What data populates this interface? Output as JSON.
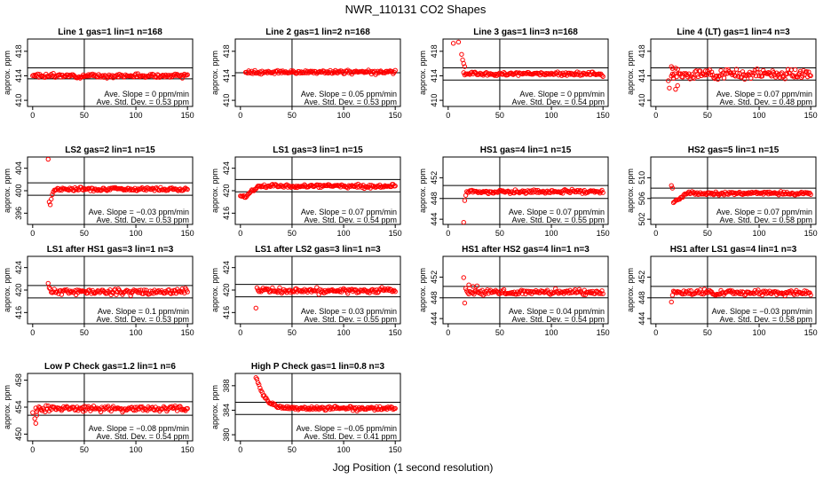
{
  "page": {
    "title": "NWR_110131   CO2 Shapes",
    "xlabel": "Jog Position (1 second resolution)"
  },
  "chart_data": [
    {
      "type": "scatter",
      "title": "Line 1 gas=1 lin=1 n=168",
      "xlabel": "",
      "ylabel": "approx. ppm",
      "xlim": [
        -5,
        155
      ],
      "ylim": [
        409,
        420
      ],
      "xticks": [
        0,
        50,
        100,
        150
      ],
      "yticks": [
        410,
        414,
        418
      ],
      "hlines": [
        413.5,
        415.3
      ],
      "vline": 50,
      "point_color": "#ff0000",
      "shape": {
        "mode": "flat",
        "base": 414.0,
        "noise": 0.15,
        "start": 0
      },
      "annotation": [
        "Ave. Slope = 0  ppm/min",
        "Ave. Std. Dev. = 0.53  ppm"
      ]
    },
    {
      "type": "scatter",
      "title": "Line 2 gas=1 lin=2 n=168",
      "xlabel": "",
      "ylabel": "approx. ppm",
      "xlim": [
        -5,
        155
      ],
      "ylim": [
        409,
        420
      ],
      "xticks": [
        0,
        50,
        100,
        150
      ],
      "yticks": [
        410,
        414,
        418
      ],
      "hlines": [
        414.5
      ],
      "vline": 50,
      "point_color": "#ff0000",
      "shape": {
        "mode": "flat",
        "base": 414.6,
        "noise": 0.15,
        "start": 5
      },
      "annotation": [
        "Ave. Slope = 0.05  ppm/min",
        "Ave. Std. Dev. = 0.53  ppm"
      ]
    },
    {
      "type": "scatter",
      "title": "Line 3 gas=1 lin=3 n=168",
      "xlabel": "",
      "ylabel": "approx. ppm",
      "xlim": [
        -5,
        155
      ],
      "ylim": [
        409,
        420
      ],
      "xticks": [
        0,
        50,
        100,
        150
      ],
      "yticks": [
        410,
        414,
        418
      ],
      "hlines": [
        413.3,
        415.3
      ],
      "vline": 50,
      "point_color": "#ff0000",
      "shape": {
        "mode": "flat",
        "base": 414.3,
        "noise": 0.15,
        "start": 15
      },
      "outliers": [
        [
          5,
          419.3
        ],
        [
          10,
          419.5
        ],
        [
          13,
          417.5
        ],
        [
          14,
          416.6
        ],
        [
          15,
          416
        ],
        [
          16,
          415.5
        ]
      ],
      "annotation": [
        "Ave. Slope = 0  ppm/min",
        "Ave. Std. Dev. = 0.54  ppm"
      ]
    },
    {
      "type": "scatter",
      "title": "Line 4 (LT) gas=1 lin=4 n=3",
      "xlabel": "",
      "ylabel": "approx. ppm",
      "xlim": [
        -5,
        155
      ],
      "ylim": [
        409,
        420
      ],
      "xticks": [
        0,
        50,
        100,
        150
      ],
      "yticks": [
        410,
        414,
        418
      ],
      "hlines": [
        413.3,
        415.3
      ],
      "vline": 50,
      "point_color": "#ff0000",
      "shape": {
        "mode": "flat",
        "base": 414.3,
        "noise": 0.4,
        "start": 15
      },
      "outliers": [
        [
          12,
          413.2
        ],
        [
          13,
          412.0
        ],
        [
          15,
          415.5
        ],
        [
          16,
          415.2
        ],
        [
          17,
          413.6
        ],
        [
          19,
          411.8
        ],
        [
          21,
          412.4
        ]
      ],
      "annotation": [
        "Ave. Slope = 0.07  ppm/min",
        "Ave. Std. Dev. = 0.48  ppm"
      ]
    },
    {
      "type": "scatter",
      "title": "LS2 gas=2 lin=1 n=15",
      "xlabel": "",
      "ylabel": "approx. ppm",
      "xlim": [
        -5,
        155
      ],
      "ylim": [
        394,
        406
      ],
      "xticks": [
        0,
        50,
        100,
        150
      ],
      "yticks": [
        396,
        400,
        404
      ],
      "hlines": [
        399.2,
        401.4
      ],
      "vline": 50,
      "point_color": "#ff0000",
      "shape": {
        "mode": "flat",
        "base": 400.3,
        "noise": 0.15,
        "start": 22
      },
      "outliers": [
        [
          15,
          405.6
        ],
        [
          16,
          398.0
        ],
        [
          17,
          397.5
        ],
        [
          18,
          398.5
        ],
        [
          19,
          399.3
        ],
        [
          20,
          399.8
        ],
        [
          21,
          400.1
        ]
      ],
      "annotation": [
        "Ave. Slope = −0.03  ppm/min",
        "Ave. Std. Dev. = 0.53  ppm"
      ]
    },
    {
      "type": "scatter",
      "title": "LS1 gas=3 lin=1 n=15",
      "xlabel": "",
      "ylabel": "approx. ppm",
      "xlim": [
        -5,
        155
      ],
      "ylim": [
        414,
        426
      ],
      "xticks": [
        0,
        50,
        100,
        150
      ],
      "yticks": [
        416,
        420,
        424
      ],
      "hlines": [
        419.8,
        422
      ],
      "vline": 50,
      "point_color": "#ff0000",
      "shape": {
        "mode": "rise",
        "base": 420.8,
        "from": 419.0,
        "rise_start": 5,
        "rise_end": 18,
        "noise": 0.15,
        "start": 0
      },
      "annotation": [
        "Ave. Slope = 0.07  ppm/min",
        "Ave. Std. Dev. = 0.54  ppm"
      ]
    },
    {
      "type": "scatter",
      "title": "HS1 gas=4 lin=1 n=15",
      "xlabel": "",
      "ylabel": "approx. ppm",
      "xlim": [
        -5,
        155
      ],
      "ylim": [
        443,
        456
      ],
      "xticks": [
        0,
        50,
        100,
        150
      ],
      "yticks": [
        444,
        448,
        452
      ],
      "hlines": [
        448.0,
        450.5
      ],
      "vline": 50,
      "point_color": "#ff0000",
      "shape": {
        "mode": "flat",
        "base": 449.3,
        "noise": 0.18,
        "start": 18
      },
      "outliers": [
        [
          15,
          443.4
        ],
        [
          16,
          447.6
        ],
        [
          17,
          448.6
        ]
      ],
      "annotation": [
        "Ave. Slope = 0.07  ppm/min",
        "Ave. Std. Dev. = 0.55  ppm"
      ]
    },
    {
      "type": "scatter",
      "title": "HS2 gas=5 lin=1 n=15",
      "xlabel": "",
      "ylabel": "approx. ppm",
      "xlim": [
        -5,
        155
      ],
      "ylim": [
        501,
        514
      ],
      "xticks": [
        0,
        50,
        100,
        150
      ],
      "yticks": [
        502,
        506,
        510
      ],
      "hlines": [
        506.1,
        508.0
      ],
      "vline": 50,
      "point_color": "#ff0000",
      "shape": {
        "mode": "rise",
        "base": 507.0,
        "from": 505.4,
        "rise_start": 18,
        "rise_end": 30,
        "noise": 0.15,
        "start": 18
      },
      "outliers": [
        [
          15,
          508.5
        ],
        [
          16,
          508.0
        ],
        [
          17,
          505.2
        ]
      ],
      "annotation": [
        "Ave. Slope = 0.07  ppm/min",
        "Ave. Std. Dev. = 0.58  ppm"
      ]
    },
    {
      "type": "scatter",
      "title": "LS1 after HS1 gas=3 lin=1 n=3",
      "xlabel": "",
      "ylabel": "approx. ppm",
      "xlim": [
        -5,
        155
      ],
      "ylim": [
        414,
        426
      ],
      "xticks": [
        0,
        50,
        100,
        150
      ],
      "yticks": [
        416,
        420,
        424
      ],
      "hlines": [
        418.6,
        420.8
      ],
      "vline": 50,
      "point_color": "#ff0000",
      "shape": {
        "mode": "flat",
        "base": 419.7,
        "noise": 0.25,
        "start": 18
      },
      "outliers": [
        [
          15,
          421.2
        ],
        [
          16,
          420.4
        ],
        [
          17,
          420.2
        ]
      ],
      "annotation": [
        "Ave. Slope = 0.1  ppm/min",
        "Ave. Std. Dev. = 0.53  ppm"
      ]
    },
    {
      "type": "scatter",
      "title": "LS1 after LS2 gas=3 lin=1 n=3",
      "xlabel": "",
      "ylabel": "approx. ppm",
      "xlim": [
        -5,
        155
      ],
      "ylim": [
        414,
        426
      ],
      "xticks": [
        0,
        50,
        100,
        150
      ],
      "yticks": [
        416,
        420,
        424
      ],
      "hlines": [
        418.8,
        421.0
      ],
      "vline": 50,
      "point_color": "#ff0000",
      "shape": {
        "mode": "flat",
        "base": 419.9,
        "noise": 0.25,
        "start": 18
      },
      "outliers": [
        [
          15,
          416.8
        ],
        [
          16,
          420.4
        ],
        [
          17,
          420.0
        ]
      ],
      "annotation": [
        "Ave. Slope = 0.03  ppm/min",
        "Ave. Std. Dev. = 0.55  ppm"
      ]
    },
    {
      "type": "scatter",
      "title": "HS1 after HS2 gas=4 lin=1 n=3",
      "xlabel": "",
      "ylabel": "approx. ppm",
      "xlim": [
        -5,
        155
      ],
      "ylim": [
        443,
        456
      ],
      "xticks": [
        0,
        50,
        100,
        150
      ],
      "yticks": [
        444,
        448,
        452
      ],
      "hlines": [
        448.0,
        450.2
      ],
      "vline": 50,
      "point_color": "#ff0000",
      "shape": {
        "mode": "flat",
        "base": 449.1,
        "noise": 0.25,
        "start": 18
      },
      "outliers": [
        [
          15,
          451.9
        ],
        [
          16,
          447.0
        ],
        [
          17,
          449.8
        ],
        [
          20,
          450.5
        ],
        [
          24,
          450.2
        ],
        [
          28,
          450.3
        ]
      ],
      "annotation": [
        "Ave. Slope = 0.04  ppm/min",
        "Ave. Std. Dev. = 0.54  ppm"
      ]
    },
    {
      "type": "scatter",
      "title": "HS1 after LS1 gas=4 lin=1 n=3",
      "xlabel": "",
      "ylabel": "approx. ppm",
      "xlim": [
        -5,
        155
      ],
      "ylim": [
        443,
        456
      ],
      "xticks": [
        0,
        50,
        100,
        150
      ],
      "yticks": [
        444,
        448,
        452
      ],
      "hlines": [
        448.0,
        450.2
      ],
      "vline": 50,
      "point_color": "#ff0000",
      "shape": {
        "mode": "flat",
        "base": 449.0,
        "noise": 0.25,
        "start": 18
      },
      "outliers": [
        [
          15,
          447.2
        ],
        [
          16,
          448.5
        ],
        [
          17,
          449.3
        ]
      ],
      "annotation": [
        "Ave. Slope = −0.03  ppm/min",
        "Ave. Std. Dev. = 0.58  ppm"
      ]
    },
    {
      "type": "scatter",
      "title": "Low P Check gas=1.2 lin=1 n=6",
      "xlabel": "",
      "ylabel": "approx. ppm",
      "xlim": [
        -5,
        155
      ],
      "ylim": [
        449,
        459
      ],
      "xticks": [
        0,
        50,
        100,
        150
      ],
      "yticks": [
        450,
        454,
        458
      ],
      "hlines": [
        452.8,
        454.8
      ],
      "vline": 50,
      "point_color": "#ff0000",
      "shape": {
        "mode": "flat",
        "base": 453.8,
        "noise": 0.2,
        "start": 3
      },
      "outliers": [
        [
          0,
          453.2
        ],
        [
          2,
          452.3
        ],
        [
          3,
          451.6
        ],
        [
          4,
          452.8
        ]
      ],
      "annotation": [
        "Ave. Slope = −0.08  ppm/min",
        "Ave. Std. Dev. = 0.54  ppm"
      ]
    },
    {
      "type": "scatter",
      "title": "High P Check gas=1 lin=0.8 n=3",
      "xlabel": "",
      "ylabel": "approx. ppm",
      "xlim": [
        -5,
        155
      ],
      "ylim": [
        379,
        390
      ],
      "xticks": [
        0,
        50,
        100,
        150
      ],
      "yticks": [
        380,
        384,
        388
      ],
      "hlines": [
        383.3,
        385.3
      ],
      "vline": 50,
      "point_color": "#ff0000",
      "shape": {
        "mode": "decay",
        "base": 384.3,
        "from": 389.6,
        "start": 15,
        "tau": 8,
        "noise": 0.15
      },
      "annotation": [
        "Ave. Slope = −0.05  ppm/min",
        "Ave. Std. Dev. = 0.41  ppm"
      ]
    }
  ]
}
